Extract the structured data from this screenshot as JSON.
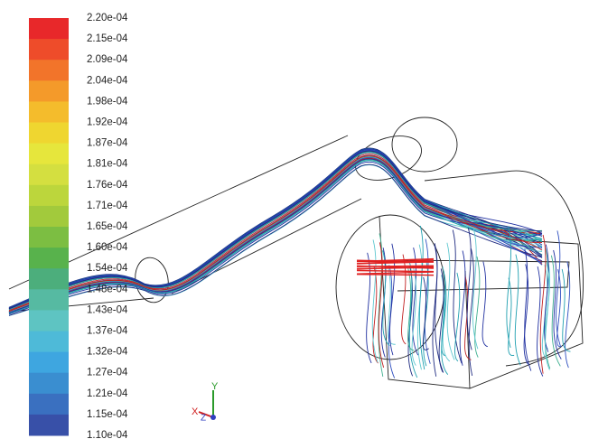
{
  "colorbar": {
    "labels": [
      "2.20e-04",
      "2.15e-04",
      "2.09e-04",
      "2.04e-04",
      "1.98e-04",
      "1.92e-04",
      "1.87e-04",
      "1.81e-04",
      "1.76e-04",
      "1.71e-04",
      "1.65e-04",
      "1.60e-04",
      "1.54e-04",
      "1.48e-04",
      "1.43e-04",
      "1.37e-04",
      "1.32e-04",
      "1.27e-04",
      "1.21e-04",
      "1.15e-04",
      "1.10e-04"
    ],
    "colors": [
      "#e8282a",
      "#ee4c2a",
      "#f2742a",
      "#f49a2a",
      "#f4bc2c",
      "#efd630",
      "#e6e63c",
      "#d4df40",
      "#bcd63c",
      "#a2ca3c",
      "#7cbe42",
      "#58b24c",
      "#4cae7c",
      "#56baa2",
      "#5ec4c2",
      "#4ebad8",
      "#3ea6e0",
      "#3a8ed0",
      "#3a70c0",
      "#3850a8"
    ]
  },
  "axes": {
    "x": "X",
    "y": "Y",
    "z": "Z"
  }
}
